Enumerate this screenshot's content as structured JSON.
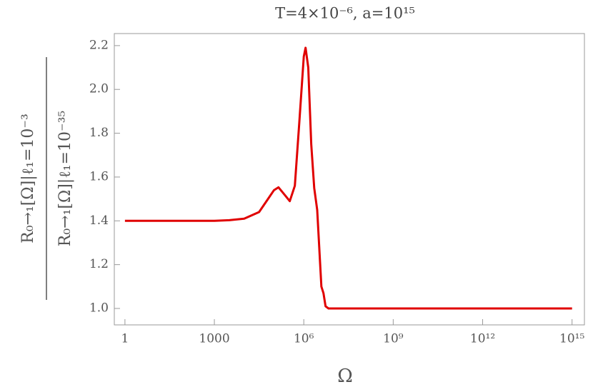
{
  "chart_data": {
    "type": "line",
    "title": "T=4×10⁻⁶,  a=10¹⁵",
    "x_label": "Ω",
    "y_label_numerator": "R₀→₁[Ω]|ℓ₁=10⁻³",
    "y_label_denominator": "R₀→₁[Ω]|ℓ₁=10⁻³⁵",
    "x_scale": "log",
    "xlim": [
      0.44,
      2600000000000000.0
    ],
    "ylim": [
      0.925,
      2.255
    ],
    "xticks": [
      1,
      1000,
      {
        "value": 1000000,
        "label": "10⁶"
      },
      {
        "value": 1000000000,
        "label": "10⁹"
      },
      {
        "value": 1000000000000,
        "label": "10¹²"
      },
      {
        "value": 1000000000000000,
        "label": "10¹⁵"
      }
    ],
    "yticks": [
      {
        "value": 1.0,
        "label": "1.0"
      },
      1.2,
      1.4,
      1.6,
      1.8,
      {
        "value": 2.0,
        "label": "2.0"
      },
      2.2
    ],
    "series": [
      {
        "color": "#e00000",
        "x": [
          1,
          1000,
          3162,
          10000,
          31623,
          63096,
          100000,
          141254,
          223872,
          338844,
          501187,
          707946,
          1000000,
          1148154,
          1412538,
          1778279,
          2238721,
          2818383,
          3890451,
          4570882,
          5370318,
          6760830,
          1000000000,
          1000000000000000
        ],
        "values": [
          1.4,
          1.4,
          1.403,
          1.41,
          1.44,
          1.5,
          1.54,
          1.553,
          1.52,
          1.49,
          1.56,
          1.85,
          2.15,
          2.19,
          2.1,
          1.75,
          1.55,
          1.45,
          1.1,
          1.07,
          1.01,
          1.0,
          1.0,
          1.0
        ]
      }
    ]
  }
}
